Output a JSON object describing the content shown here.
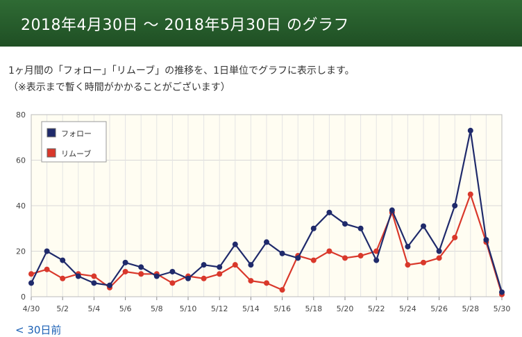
{
  "header": {
    "title": "2018年4月30日 〜 2018年5月30日 のグラフ"
  },
  "description": {
    "line1": "1ヶ月間の「フォロー」「リムーブ」の推移を、1日単位でグラフに表示します。",
    "line2": "（※表示まで暫く時間がかかることがございます）"
  },
  "footer": {
    "prev_link": "< 30日前"
  },
  "chart_data": {
    "type": "line",
    "x": [
      "4/30",
      "5/1",
      "5/2",
      "5/3",
      "5/4",
      "5/5",
      "5/6",
      "5/7",
      "5/8",
      "5/9",
      "5/10",
      "5/11",
      "5/12",
      "5/13",
      "5/14",
      "5/15",
      "5/16",
      "5/17",
      "5/18",
      "5/19",
      "5/20",
      "5/21",
      "5/22",
      "5/23",
      "5/24",
      "5/25",
      "5/26",
      "5/27",
      "5/28",
      "5/29",
      "5/30"
    ],
    "tick_labels": [
      "4/30",
      "5/2",
      "5/4",
      "5/6",
      "5/8",
      "5/10",
      "5/12",
      "5/14",
      "5/16",
      "5/18",
      "5/20",
      "5/22",
      "5/24",
      "5/26",
      "5/28",
      "5/30"
    ],
    "y_ticks": [
      "0",
      "20",
      "40",
      "60",
      "80"
    ],
    "ylim": [
      0,
      80
    ],
    "grid": true,
    "legend_position": "top-left",
    "series": [
      {
        "name": "フォロー",
        "color": "#1f2a6b",
        "values": [
          6,
          20,
          16,
          9,
          6,
          5,
          15,
          13,
          9,
          11,
          8,
          14,
          13,
          23,
          14,
          24,
          19,
          17,
          30,
          37,
          32,
          30,
          16,
          38,
          22,
          31,
          20,
          40,
          73,
          25,
          2
        ]
      },
      {
        "name": "リムーブ",
        "color": "#d9382b",
        "values": [
          10,
          12,
          8,
          10,
          9,
          4,
          11,
          10,
          10,
          6,
          9,
          8,
          10,
          14,
          7,
          6,
          3,
          18,
          16,
          20,
          17,
          18,
          20,
          37,
          14,
          15,
          17,
          26,
          45,
          24,
          1
        ]
      }
    ]
  }
}
